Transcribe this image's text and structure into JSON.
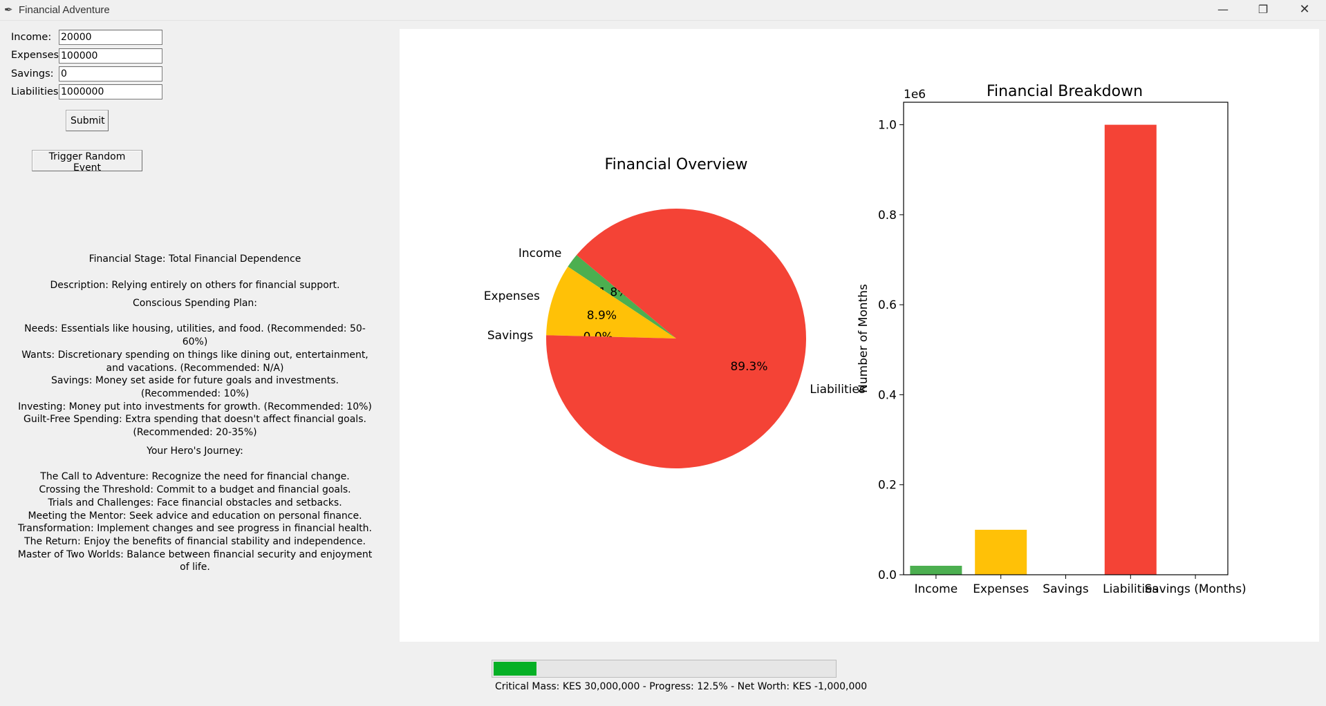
{
  "window": {
    "title": "Financial Adventure",
    "icon": "feather-icon",
    "controls": {
      "minimize": "—",
      "maximize": "❐",
      "close": "✕"
    }
  },
  "form": {
    "fields": [
      {
        "label": "Income:",
        "value": "20000"
      },
      {
        "label": "Expenses:",
        "value": "100000"
      },
      {
        "label": "Savings:",
        "value": "0"
      },
      {
        "label": "Liabilities:",
        "value": "1000000"
      }
    ],
    "submit_label": "Submit",
    "random_event_label": "Trigger Random Event"
  },
  "info": {
    "stage": "Financial Stage: Total Financial Dependence",
    "description": "Description: Relying entirely on others for financial support.",
    "plan": "Conscious Spending Plan:\n\nNeeds: Essentials like housing, utilities, and food. (Recommended: 50-60%)\nWants: Discretionary spending on things like dining out, entertainment,\nand vacations. (Recommended: N/A)\nSavings: Money set aside for future goals and investments.\n(Recommended: 10%)\nInvesting: Money put into investments for growth. (Recommended: 10%)\nGuilt-Free Spending: Extra spending that doesn't affect financial goals.\n(Recommended: 20-35%)",
    "journey": "Your Hero's Journey:\n\nThe Call to Adventure: Recognize the need for financial change.\nCrossing the Threshold: Commit to a budget and financial goals.\nTrials and Challenges: Face financial obstacles and setbacks.\nMeeting the Mentor: Seek advice and education on personal finance.\nTransformation: Implement changes and see progress in financial health.\nThe Return: Enjoy the benefits of financial stability and independence.\nMaster of Two Worlds: Balance between financial security and enjoyment\nof life."
  },
  "chart_data": [
    {
      "type": "pie",
      "title": "Financial Overview",
      "labels": [
        "Income",
        "Expenses",
        "Savings",
        "Liabilities"
      ],
      "values": [
        20000,
        100000,
        0,
        1000000
      ],
      "percent_labels": [
        "1.8%",
        "8.9%",
        "0.0%",
        "89.3%"
      ],
      "colors": [
        "#4caf50",
        "#ffc107",
        "#2196f3",
        "#f44336"
      ]
    },
    {
      "type": "bar",
      "title": "Financial Breakdown",
      "categories": [
        "Income",
        "Expenses",
        "Savings",
        "Liabilities",
        "Savings (Months)"
      ],
      "values": [
        20000,
        100000,
        0,
        1000000,
        0
      ],
      "colors": [
        "#4caf50",
        "#ffc107",
        "#2196f3",
        "#f44336",
        "#9c27b0"
      ],
      "ylabel": "Number of Months",
      "ylim": [
        0,
        1050000
      ],
      "yticks": [
        0,
        200000,
        400000,
        600000,
        800000,
        1000000
      ],
      "ytick_labels": [
        "0.0",
        "0.2",
        "0.4",
        "0.6",
        "0.8",
        "1.0"
      ],
      "offset_label": "1e6",
      "grid": false
    }
  ],
  "progress": {
    "value": 0.125,
    "text": "Critical Mass: KES 30,000,000 - Progress: 12.5% - Net Worth: KES -1,000,000"
  }
}
